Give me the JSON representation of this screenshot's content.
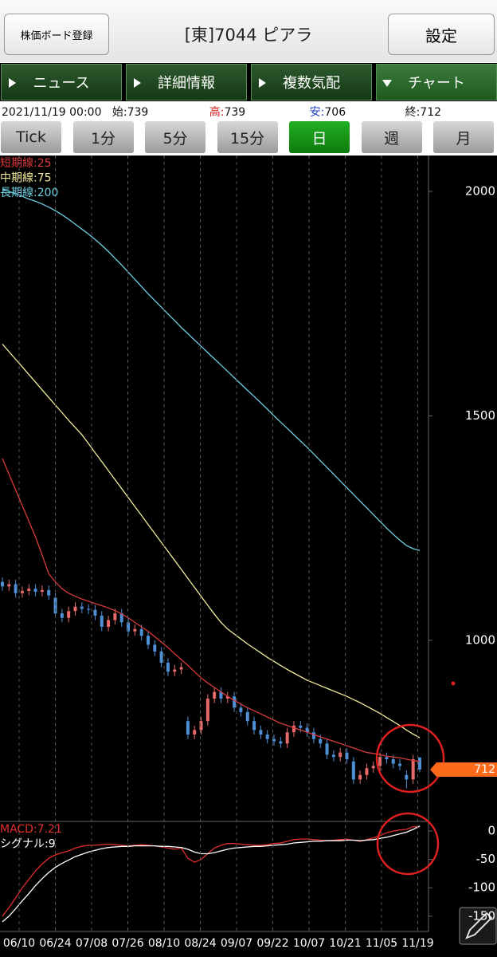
{
  "header": {
    "register_button": "株価ボード登録",
    "title": "[東]7044 ピアラ",
    "settings_button": "設定"
  },
  "tabs": [
    "ニュース",
    "詳細情報",
    "複数気配",
    "チャート"
  ],
  "selected_tab": 3,
  "quote": {
    "datetime": "2021/11/19 00:00",
    "open_label": "始:",
    "open": 739,
    "high_label": "高:",
    "high": 739,
    "low_label": "安:",
    "low": 706,
    "close_label": "終:",
    "close": 712
  },
  "periods": [
    "Tick",
    "1分",
    "5分",
    "15分",
    "日",
    "週",
    "月"
  ],
  "selected_period": 4,
  "chart_data": [
    {
      "type": "candlestick",
      "x_labels": [
        "06/10",
        "06/24",
        "07/08",
        "07/26",
        "08/10",
        "08/24",
        "09/07",
        "09/22",
        "10/07",
        "10/21",
        "11/05",
        "11/19"
      ],
      "open": [
        1130,
        1120,
        1125,
        1105,
        1110,
        1115,
        1108,
        1112,
        1095,
        1060,
        1050,
        1065,
        1075,
        1070,
        1068,
        1055,
        1030,
        1045,
        1060,
        1040,
        1020,
        1025,
        1010,
        990,
        975,
        950,
        930,
        935,
        820,
        790,
        800,
        820,
        870,
        885,
        870,
        875,
        850,
        840,
        820,
        800,
        790,
        780,
        775,
        770,
        795,
        810,
        805,
        795,
        780,
        770,
        745,
        740,
        750,
        730,
        690,
        700,
        715,
        720,
        740,
        735,
        725,
        700,
        690,
        739
      ],
      "high": [
        1140,
        1135,
        1135,
        1120,
        1125,
        1125,
        1122,
        1122,
        1105,
        1070,
        1075,
        1085,
        1085,
        1080,
        1078,
        1065,
        1055,
        1070,
        1070,
        1050,
        1035,
        1035,
        1020,
        1000,
        985,
        960,
        945,
        950,
        830,
        810,
        830,
        880,
        895,
        895,
        885,
        885,
        860,
        850,
        830,
        810,
        800,
        790,
        785,
        805,
        820,
        820,
        815,
        805,
        790,
        780,
        755,
        760,
        760,
        740,
        710,
        725,
        730,
        750,
        750,
        745,
        735,
        710,
        745,
        739
      ],
      "low": [
        1110,
        1110,
        1095,
        1095,
        1100,
        1098,
        1098,
        1090,
        1050,
        1040,
        1040,
        1055,
        1060,
        1058,
        1045,
        1020,
        1020,
        1035,
        1030,
        1010,
        1010,
        1000,
        980,
        965,
        940,
        920,
        920,
        925,
        780,
        780,
        790,
        810,
        860,
        860,
        860,
        840,
        830,
        810,
        790,
        780,
        770,
        765,
        760,
        760,
        785,
        795,
        785,
        770,
        760,
        735,
        730,
        730,
        725,
        680,
        680,
        690,
        705,
        710,
        725,
        715,
        710,
        670,
        680,
        706
      ],
      "close": [
        1120,
        1125,
        1105,
        1110,
        1115,
        1108,
        1112,
        1100,
        1060,
        1050,
        1065,
        1075,
        1070,
        1068,
        1055,
        1030,
        1045,
        1060,
        1040,
        1020,
        1025,
        1010,
        990,
        975,
        950,
        930,
        935,
        940,
        790,
        800,
        820,
        870,
        885,
        870,
        875,
        850,
        840,
        820,
        800,
        790,
        780,
        775,
        770,
        795,
        810,
        805,
        795,
        780,
        770,
        745,
        740,
        750,
        735,
        690,
        700,
        715,
        720,
        740,
        735,
        725,
        720,
        690,
        735,
        712
      ],
      "up_color": "#e86a6a",
      "down_color": "#4f8fd6",
      "series": [
        {
          "name": "短期線:25",
          "color": "#d83a3a",
          "values": [
            1405,
            1370,
            1335,
            1300,
            1265,
            1230,
            1190,
            1148,
            1130,
            1115,
            1105,
            1098,
            1092,
            1087,
            1082,
            1077,
            1072,
            1066,
            1059,
            1050,
            1040,
            1030,
            1020,
            1008,
            996,
            984,
            970,
            957,
            944,
            930,
            916,
            905,
            895,
            885,
            875,
            866,
            858,
            850,
            843,
            836,
            829,
            822,
            815,
            810,
            805,
            800,
            795,
            790,
            785,
            780,
            775,
            770,
            765,
            760,
            755,
            750,
            748,
            745,
            742,
            740,
            738,
            735,
            732,
            730
          ]
        },
        {
          "name": "中期線:75",
          "color": "#f2ec9a",
          "values": [
            1660,
            1643,
            1626,
            1609,
            1592,
            1575,
            1558,
            1541,
            1524,
            1507,
            1490,
            1474,
            1458,
            1438,
            1418,
            1398,
            1378,
            1358,
            1338,
            1318,
            1298,
            1278,
            1258,
            1238,
            1218,
            1198,
            1178,
            1158,
            1138,
            1118,
            1098,
            1078,
            1058,
            1040,
            1025,
            1014,
            1003,
            992,
            982,
            972,
            962,
            953,
            944,
            935,
            927,
            919,
            911,
            905,
            899,
            893,
            887,
            881,
            875,
            868,
            861,
            853,
            845,
            837,
            828,
            819,
            810,
            800,
            791,
            783
          ]
        },
        {
          "name": "長期線:200",
          "color": "#6ecfe0",
          "values": [
            2005,
            2000,
            1995,
            1989,
            1983,
            1978,
            1972,
            1965,
            1957,
            1948,
            1938,
            1927,
            1916,
            1905,
            1893,
            1880,
            1866,
            1851,
            1836,
            1820,
            1804,
            1788,
            1772,
            1757,
            1742,
            1727,
            1712,
            1697,
            1683,
            1669,
            1655,
            1641,
            1627,
            1613,
            1599,
            1585,
            1571,
            1557,
            1543,
            1529,
            1515,
            1500,
            1486,
            1472,
            1458,
            1444,
            1430,
            1415,
            1400,
            1385,
            1370,
            1355,
            1340,
            1325,
            1310,
            1295,
            1280,
            1265,
            1250,
            1236,
            1223,
            1211,
            1204,
            1200
          ]
        }
      ],
      "ylim": [
        600,
        2080
      ],
      "yticks": [
        1000,
        1500,
        2000
      ],
      "last_price": 712,
      "last_price_color": "#ff6a1a"
    },
    {
      "type": "line",
      "series": [
        {
          "name": "MACD:7.21",
          "color": "#e03030",
          "values": [
            -150,
            -135,
            -118,
            -100,
            -85,
            -70,
            -58,
            -48,
            -42,
            -38,
            -35,
            -30,
            -27,
            -25,
            -25,
            -24,
            -23,
            -24,
            -25,
            -26,
            -25,
            -24,
            -25,
            -26,
            -28,
            -30,
            -32,
            -30,
            -48,
            -55,
            -50,
            -40,
            -30,
            -25,
            -22,
            -22,
            -23,
            -24,
            -25,
            -25,
            -24,
            -22,
            -21,
            -18,
            -15,
            -14,
            -14,
            -15,
            -16,
            -17,
            -16,
            -15,
            -14,
            -16,
            -18,
            -15,
            -12,
            -8,
            -3,
            0,
            2,
            3,
            8,
            7.21
          ]
        },
        {
          "name": "シグナル:9",
          "color": "#ffffff",
          "values": [
            -160,
            -150,
            -137,
            -123,
            -110,
            -96,
            -84,
            -73,
            -64,
            -57,
            -51,
            -45,
            -41,
            -37,
            -34,
            -31,
            -29,
            -28,
            -27,
            -27,
            -26,
            -26,
            -26,
            -26,
            -27,
            -27,
            -28,
            -29,
            -32,
            -37,
            -40,
            -40,
            -38,
            -35,
            -32,
            -30,
            -29,
            -28,
            -27,
            -27,
            -26,
            -25,
            -24,
            -23,
            -21,
            -20,
            -19,
            -18,
            -18,
            -17,
            -17,
            -17,
            -16,
            -16,
            -17,
            -16,
            -15,
            -13,
            -11,
            -8,
            -5,
            -2,
            3,
            9
          ]
        }
      ],
      "ylim": [
        -177,
        17
      ],
      "yticks": [
        0,
        -50,
        -100,
        -150
      ]
    }
  ]
}
